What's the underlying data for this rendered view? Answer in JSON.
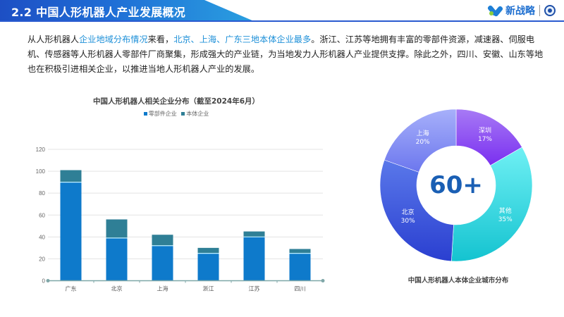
{
  "header": {
    "title": "2.2 中国人形机器人产业发展概况",
    "logo_text": "新战略"
  },
  "intro": {
    "segments": [
      {
        "text": "从人形机器人",
        "highlight": false
      },
      {
        "text": "企业地域分布情况",
        "highlight": true
      },
      {
        "text": "来看，",
        "highlight": false
      },
      {
        "text": "北京、上海、广东三地本体企业最多",
        "highlight": true
      },
      {
        "text": "。浙江、江苏等地拥有丰富的零部件资源，减速器、伺服电机、传感器等人形机器人零部件厂商聚集，形成强大的产业链，为当地发力人形机器人产业提供支撑。除此之外，四川、安徽、山东等地也在积极引进相关企业，以推进当地人形机器人产业的发展。",
        "highlight": false
      }
    ]
  },
  "colors": {
    "accent": "#1e90d8",
    "component_bar": "#0e7acb",
    "body_bar": "#2f7f96",
    "axis": "#7fa7a8"
  },
  "chart_data": [
    {
      "type": "bar",
      "stacked": true,
      "title": "中国人形机器人相关企业分布（截至2024年6月）",
      "xlabel": "",
      "ylabel": "",
      "categories": [
        "广东",
        "北京",
        "上海",
        "浙江",
        "江苏",
        "四川"
      ],
      "series": [
        {
          "name": "零部件企业",
          "color": "#0e7acb",
          "values": [
            90,
            39,
            32,
            25,
            40,
            25
          ]
        },
        {
          "name": "本体企业",
          "color": "#2f7f96",
          "values": [
            11,
            17,
            10,
            5,
            5,
            4
          ]
        }
      ],
      "ylim": [
        0,
        120
      ],
      "yticks": [
        0,
        20,
        40,
        60,
        80,
        100,
        120
      ],
      "grid": true,
      "legend_position": "top"
    },
    {
      "type": "pie",
      "donut": true,
      "title": "中国人形机器人本体企业城市分布",
      "center_label": "60+",
      "categories": [
        "深圳",
        "其他",
        "北京",
        "上海"
      ],
      "values": [
        17,
        35,
        30,
        20
      ],
      "labels": [
        "17%",
        "35%",
        "30%",
        "20%"
      ]
    }
  ]
}
